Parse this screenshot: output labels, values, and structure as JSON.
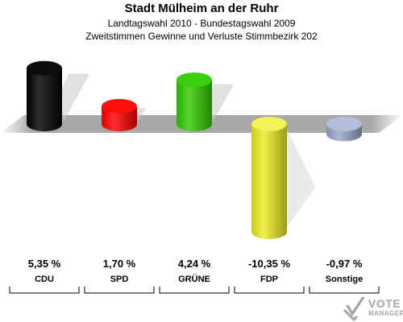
{
  "header": {
    "title": "Stadt Mülheim an der Ruhr",
    "subtitle1": "Landtagswahl 2010 - Bundestagswahl 2009",
    "subtitle2": "Zweitstimmen Gewinne und Verluste Stimmbezirk 202"
  },
  "chart_data": {
    "type": "bar",
    "categories": [
      "CDU",
      "SPD",
      "GRÜNE",
      "FDP",
      "Sonstige"
    ],
    "values": [
      5.35,
      1.7,
      4.24,
      -10.35,
      -0.97
    ],
    "value_labels": [
      "5,35 %",
      "1,70 %",
      "4,24 %",
      "-10,35 %",
      "-0,97 %"
    ],
    "colors": [
      "#000000",
      "#ff0000",
      "#33cc00",
      "#eeee22",
      "#99a8cc"
    ],
    "ylim": [
      -10.35,
      5.35
    ],
    "grid": false,
    "legend": "none"
  },
  "logo": {
    "line1": "VOTE",
    "line2": "MANAGER",
    "icon": "checkmark-ballot-icon"
  }
}
